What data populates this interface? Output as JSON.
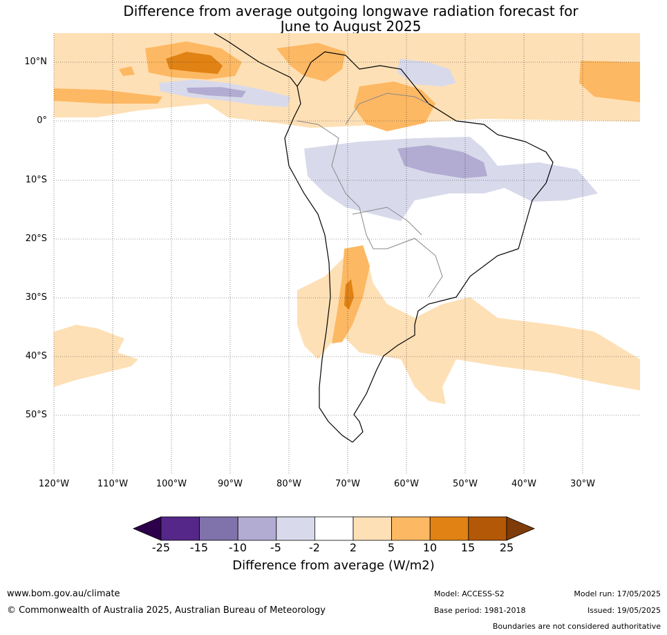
{
  "title": {
    "line1": "Difference from average outgoing longwave radiation forecast for",
    "line2": "June to August 2025"
  },
  "map": {
    "lat_labels": [
      "10°N",
      "0°",
      "10°S",
      "20°S",
      "30°S",
      "40°S",
      "50°S"
    ],
    "lon_labels": [
      "120°W",
      "110°W",
      "100°W",
      "90°W",
      "80°W",
      "70°W",
      "60°W",
      "50°W",
      "40°W",
      "30°W"
    ]
  },
  "colorbar": {
    "ticks": [
      "-25",
      "-15",
      "-10",
      "-5",
      "-2",
      "2",
      "5",
      "10",
      "15",
      "25"
    ],
    "colors": [
      "#2d004b",
      "#542788",
      "#8073ac",
      "#b2abd2",
      "#d8daeb",
      "#ffffff",
      "#fee0b6",
      "#fdb863",
      "#e08214",
      "#b35806",
      "#7f3b08"
    ],
    "label": "Difference from average (W/m2)"
  },
  "footer": {
    "website": "www.bom.gov.au/climate",
    "copyright": "© Commonwealth of Australia 2025, Australian Bureau of Meteorology",
    "model": "Model: ACCESS-S2",
    "base_period": "Base period: 1981-2018",
    "model_run": "Model run: 17/05/2025",
    "issued": "Issued: 19/05/2025",
    "disclaimer": "Boundaries are not considered authoritative"
  }
}
